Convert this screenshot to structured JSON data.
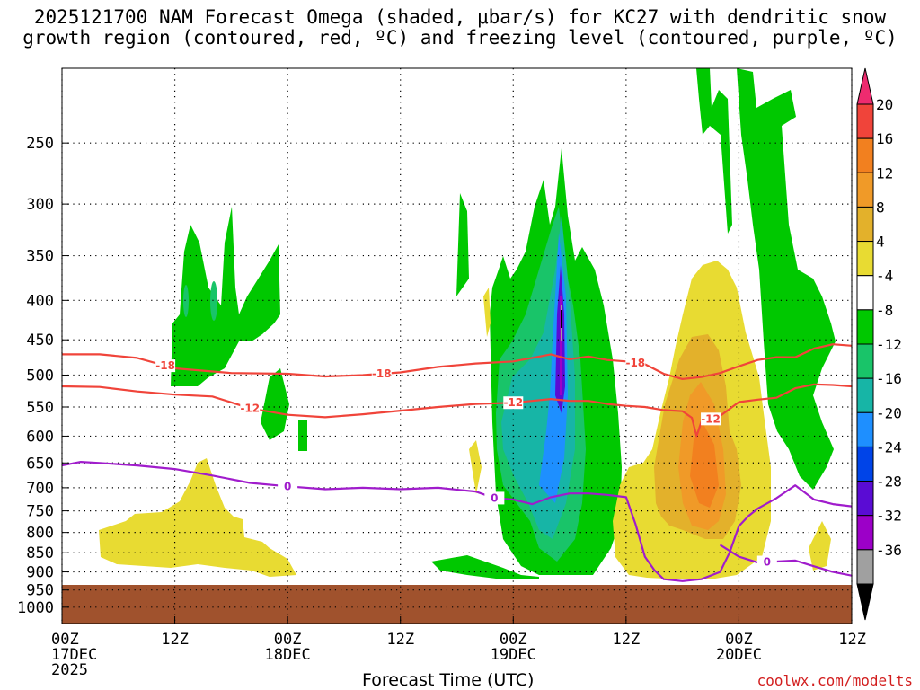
{
  "chart_data": {
    "type": "heatmap",
    "title_line1": "2025121700 NAM Forecast Omega (shaded, μbar/s) for KC27 with dendritic snow",
    "title_line2": "growth region (contoured, red, ºC) and freezing level (contoured, purple, ºC)",
    "xlabel": "Forecast Time (UTC)",
    "credit": "coolwx.com/modelts",
    "x_range_hours": [
      0,
      84
    ],
    "y_scale": "log-pressure",
    "y_range_hpa": [
      1050,
      200
    ],
    "surface_pressure_hpa": 935,
    "grid": true,
    "x_ticks": [
      {
        "hour": 0,
        "lines": [
          "00Z",
          "17DEC",
          "2025"
        ]
      },
      {
        "hour": 12,
        "lines": [
          "12Z"
        ]
      },
      {
        "hour": 24,
        "lines": [
          "00Z",
          "18DEC"
        ]
      },
      {
        "hour": 36,
        "lines": [
          "12Z"
        ]
      },
      {
        "hour": 48,
        "lines": [
          "00Z",
          "19DEC"
        ]
      },
      {
        "hour": 60,
        "lines": [
          "12Z"
        ]
      },
      {
        "hour": 72,
        "lines": [
          "00Z",
          "20DEC"
        ]
      },
      {
        "hour": 84,
        "lines": [
          "12Z"
        ]
      }
    ],
    "y_ticks": [
      250,
      300,
      350,
      400,
      450,
      500,
      550,
      600,
      650,
      700,
      750,
      800,
      850,
      900,
      950,
      1000
    ],
    "colorbar": {
      "labels": [
        "20",
        "16",
        "12",
        "8",
        "4",
        "-4",
        "-8",
        "-12",
        "-16",
        "-20",
        "-24",
        "-28",
        "-32",
        "-36"
      ],
      "bands": [
        "#ee2b6f",
        "#f0443a",
        "#f2801f",
        "#f09a28",
        "#e3b12b",
        "#e8db32",
        "#ffffff",
        "#00c800",
        "#19c469",
        "#17b5a6",
        "#1e8fff",
        "#0044e8",
        "#5a0cd4",
        "#9c00c8",
        "#a0a0a0",
        "#000000"
      ]
    },
    "contours": {
      "dendritic_minus18": {
        "color": "#f0443a",
        "label": "-18",
        "points": [
          [
            0,
            470
          ],
          [
            4,
            470
          ],
          [
            8,
            475
          ],
          [
            12,
            490
          ],
          [
            18,
            497
          ],
          [
            24,
            498
          ],
          [
            28,
            502
          ],
          [
            32,
            500
          ],
          [
            36,
            496
          ],
          [
            40,
            488
          ],
          [
            44,
            483
          ],
          [
            48,
            480
          ],
          [
            50,
            475
          ],
          [
            52,
            470
          ],
          [
            54,
            477
          ],
          [
            56,
            473
          ],
          [
            58,
            478
          ],
          [
            60,
            480
          ],
          [
            62,
            484
          ],
          [
            64,
            498
          ],
          [
            66,
            506
          ],
          [
            68,
            503
          ],
          [
            70,
            497
          ],
          [
            72,
            487
          ],
          [
            74,
            478
          ],
          [
            76,
            474
          ],
          [
            78,
            474
          ],
          [
            80,
            462
          ],
          [
            82,
            456
          ],
          [
            84,
            458
          ]
        ],
        "label_hours": [
          11,
          34,
          61
        ]
      },
      "dendritic_minus12": {
        "color": "#f0443a",
        "label": "-12",
        "points": [
          [
            0,
            517
          ],
          [
            4,
            518
          ],
          [
            8,
            525
          ],
          [
            12,
            530
          ],
          [
            16,
            533
          ],
          [
            20,
            552
          ],
          [
            24,
            563
          ],
          [
            28,
            567
          ],
          [
            32,
            562
          ],
          [
            36,
            556
          ],
          [
            40,
            550
          ],
          [
            44,
            545
          ],
          [
            48,
            543
          ],
          [
            50,
            540
          ],
          [
            52,
            537
          ],
          [
            54,
            540
          ],
          [
            56,
            540
          ],
          [
            58,
            545
          ],
          [
            60,
            548
          ],
          [
            62,
            550
          ],
          [
            64,
            555
          ],
          [
            66,
            557
          ],
          [
            67,
            568
          ],
          [
            67.5,
            600
          ],
          [
            68,
            575
          ],
          [
            69,
            570
          ],
          [
            70,
            565
          ],
          [
            72,
            542
          ],
          [
            74,
            538
          ],
          [
            76,
            535
          ],
          [
            78,
            520
          ],
          [
            80,
            514
          ],
          [
            82,
            515
          ],
          [
            84,
            517
          ]
        ],
        "label_hours": [
          20,
          48,
          69
        ]
      },
      "freezing_level_0": {
        "color": "#a01ccc",
        "label": "0",
        "points": [
          [
            0,
            655
          ],
          [
            2,
            648
          ],
          [
            4,
            650
          ],
          [
            8,
            655
          ],
          [
            12,
            662
          ],
          [
            16,
            675
          ],
          [
            20,
            690
          ],
          [
            24,
            697
          ],
          [
            28,
            703
          ],
          [
            32,
            700
          ],
          [
            36,
            703
          ],
          [
            40,
            700
          ],
          [
            44,
            708
          ],
          [
            46,
            722
          ],
          [
            48,
            725
          ],
          [
            50,
            735
          ],
          [
            52,
            720
          ],
          [
            54,
            712
          ],
          [
            56,
            712
          ],
          [
            58,
            715
          ],
          [
            60,
            720
          ],
          [
            61,
            780
          ],
          [
            62,
            860
          ],
          [
            63,
            895
          ],
          [
            64,
            920
          ],
          [
            66,
            925
          ],
          [
            68,
            920
          ],
          [
            70,
            900
          ],
          [
            71,
            850
          ],
          [
            72,
            785
          ],
          [
            73,
            762
          ],
          [
            74,
            745
          ],
          [
            76,
            722
          ],
          [
            78,
            695
          ],
          [
            80,
            725
          ],
          [
            82,
            735
          ],
          [
            84,
            740
          ]
        ],
        "label_hours": [
          24,
          46
        ]
      },
      "freezing_level_0_lower": {
        "color": "#a01ccc",
        "label": "0",
        "points": [
          [
            70,
            830
          ],
          [
            72,
            860
          ],
          [
            74,
            875
          ],
          [
            78,
            870
          ],
          [
            80,
            885
          ],
          [
            82,
            900
          ],
          [
            84,
            910
          ]
        ],
        "label_hours": [
          75
        ]
      }
    }
  }
}
